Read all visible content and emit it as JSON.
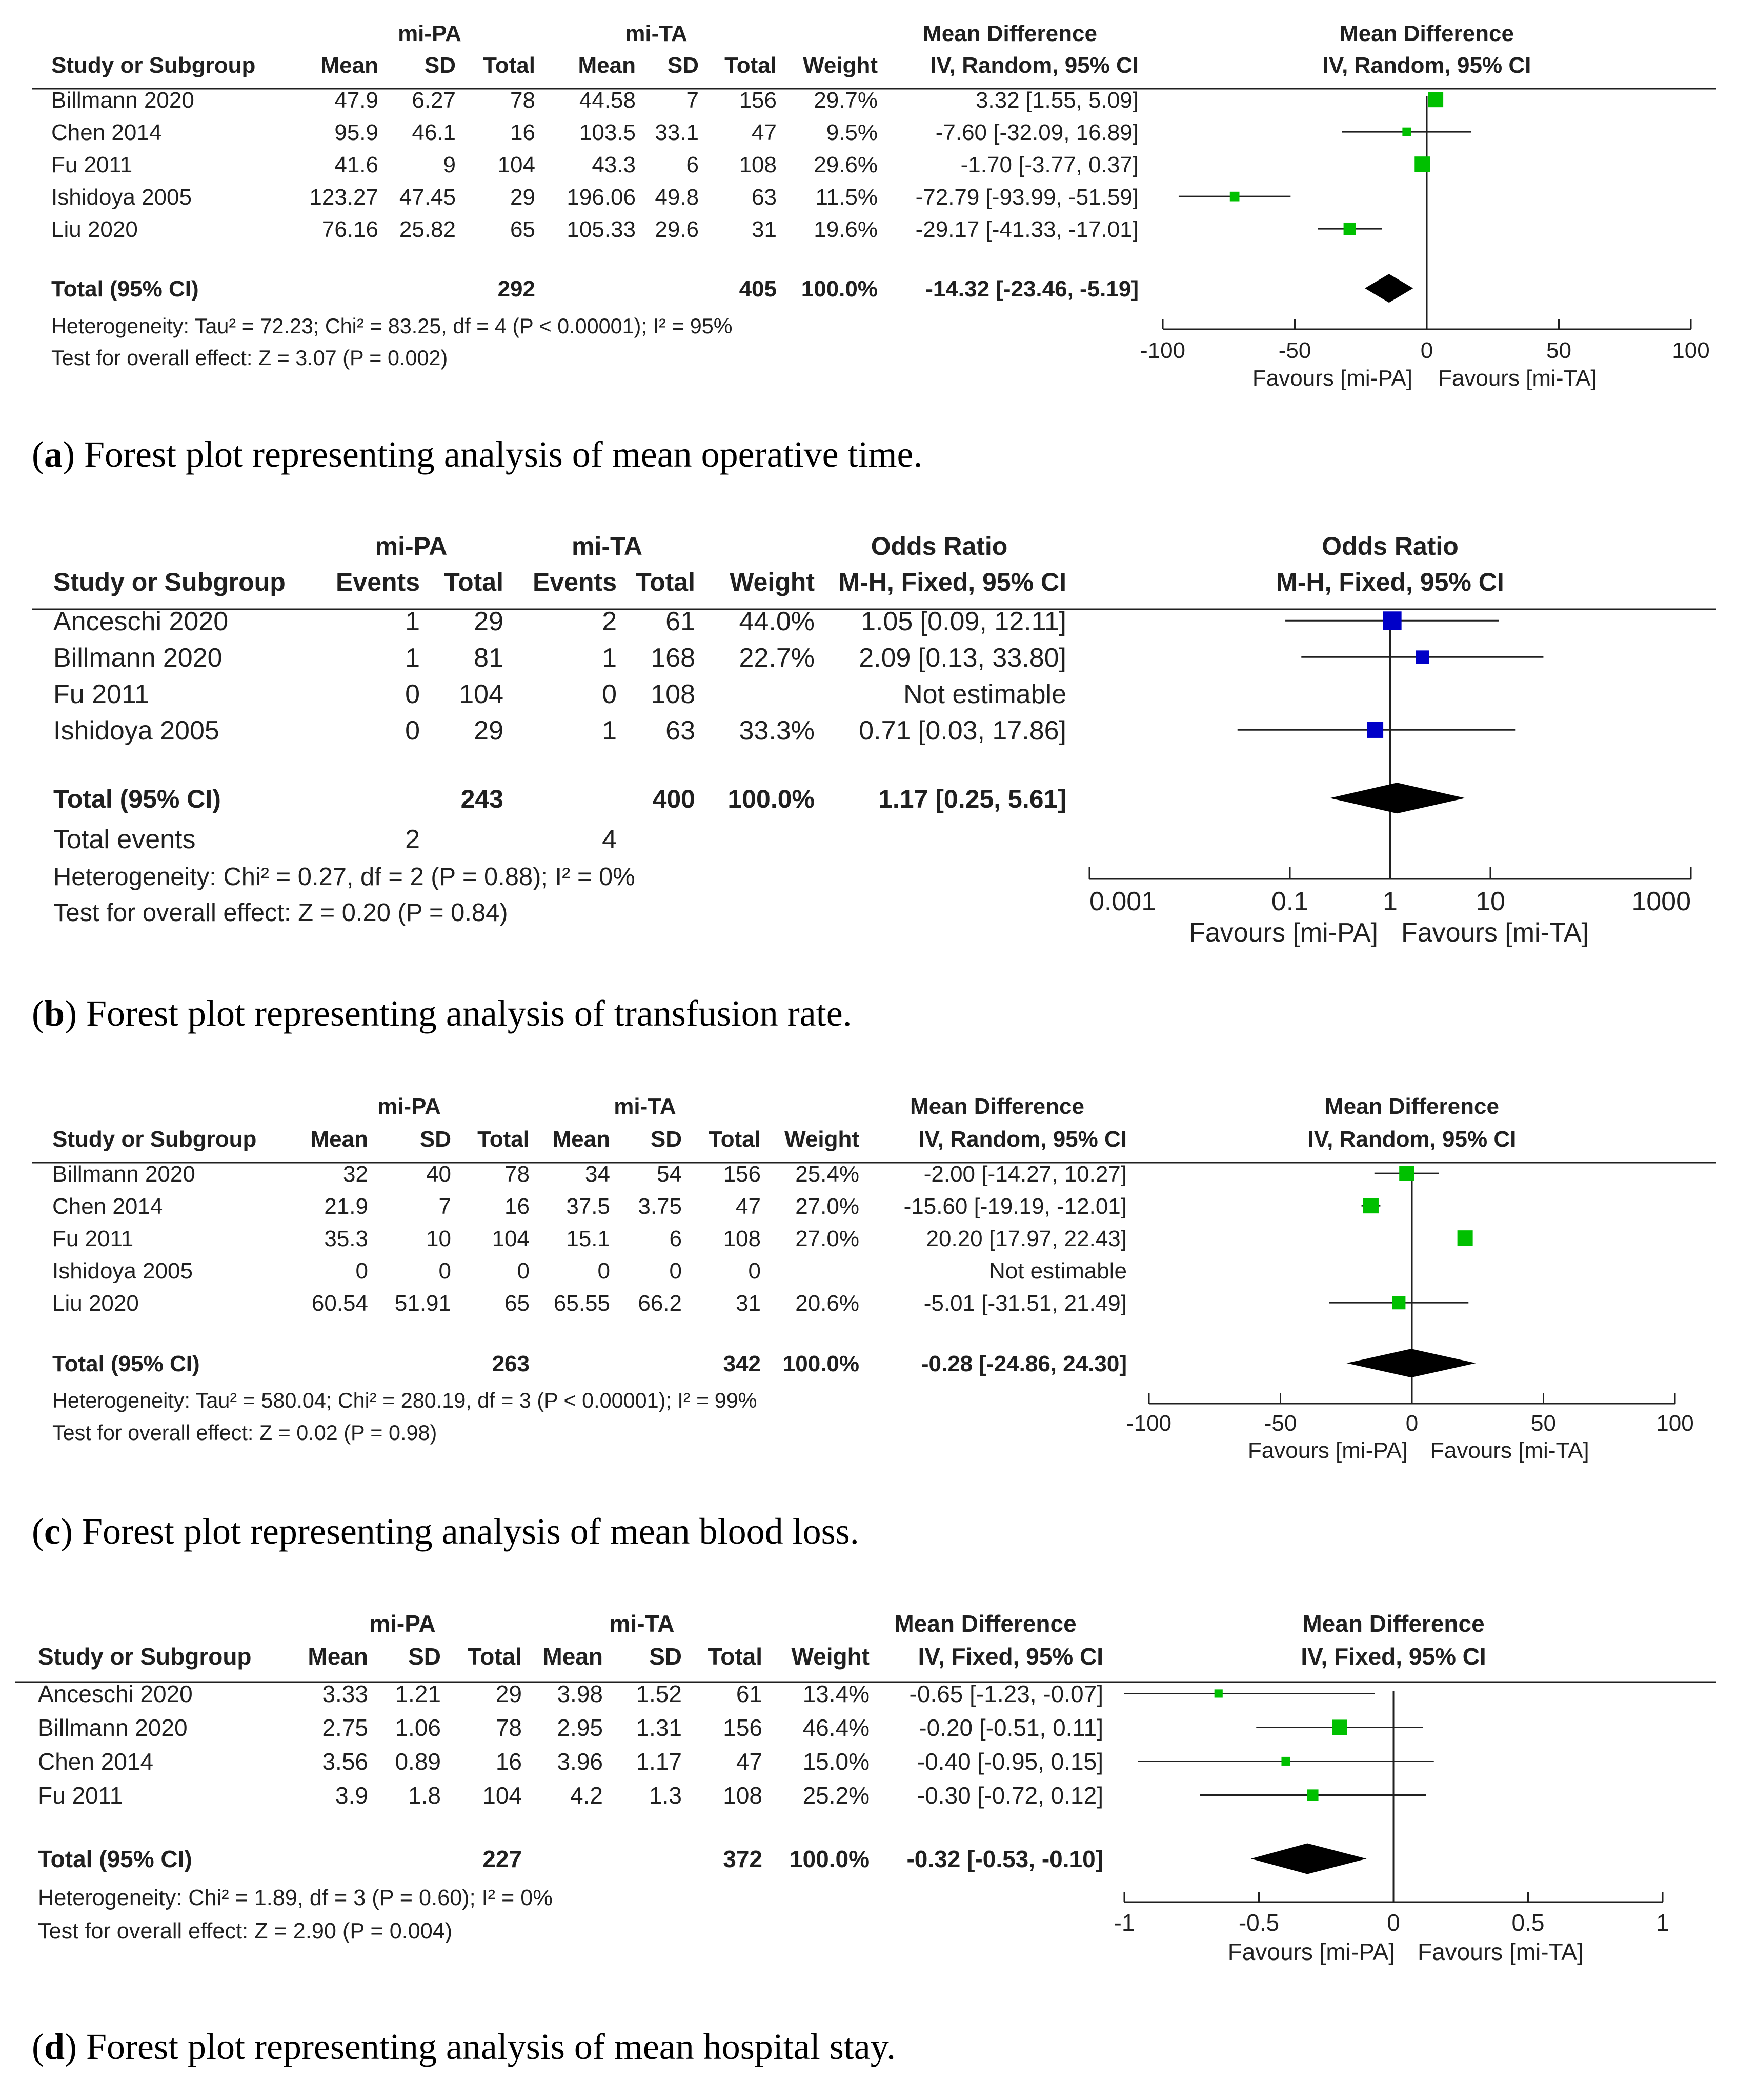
{
  "chart_data": [
    {
      "type": "forest",
      "caption_label": "a",
      "caption_text": "Forest plot representing analysis of mean operative time.",
      "group1": "mi-PA",
      "group2": "mi-TA",
      "effect_title": "Mean Difference",
      "effect_method": "IV, Random, 95% CI",
      "columns": [
        "Study or Subgroup",
        "Mean",
        "SD",
        "Total",
        "Mean",
        "SD",
        "Total",
        "Weight",
        "IV, Random, 95% CI"
      ],
      "studies": [
        {
          "name": "Billmann 2020",
          "cells": [
            "47.9",
            "6.27",
            "78",
            "44.58",
            "7",
            "156",
            "29.7%",
            "3.32 [1.55, 5.09]"
          ],
          "est": 3.32,
          "lo": 1.55,
          "hi": 5.09,
          "weight": 29.7
        },
        {
          "name": "Chen 2014",
          "cells": [
            "95.9",
            "46.1",
            "16",
            "103.5",
            "33.1",
            "47",
            "9.5%",
            "-7.60 [-32.09, 16.89]"
          ],
          "est": -7.6,
          "lo": -32.09,
          "hi": 16.89,
          "weight": 9.5
        },
        {
          "name": "Fu 2011",
          "cells": [
            "41.6",
            "9",
            "104",
            "43.3",
            "6",
            "108",
            "29.6%",
            "-1.70 [-3.77, 0.37]"
          ],
          "est": -1.7,
          "lo": -3.77,
          "hi": 0.37,
          "weight": 29.6
        },
        {
          "name": "Ishidoya 2005",
          "cells": [
            "123.27",
            "47.45",
            "29",
            "196.06",
            "49.8",
            "63",
            "11.5%",
            "-72.79 [-93.99, -51.59]"
          ],
          "est": -72.79,
          "lo": -93.99,
          "hi": -51.59,
          "weight": 11.5
        },
        {
          "name": "Liu 2020",
          "cells": [
            "76.16",
            "25.82",
            "65",
            "105.33",
            "29.6",
            "31",
            "19.6%",
            "-29.17 [-41.33, -17.01]"
          ],
          "est": -29.17,
          "lo": -41.33,
          "hi": -17.01,
          "weight": 19.6
        }
      ],
      "total": {
        "name": "Total (95% CI)",
        "cells": [
          "",
          "",
          "292",
          "",
          "",
          "405",
          "100.0%",
          "-14.32 [-23.46, -5.19]"
        ],
        "est": -14.32,
        "lo": -23.46,
        "hi": -5.19
      },
      "events": null,
      "heterogeneity": "Heterogeneity: Tau² = 72.23; Chi² = 83.25, df = 4 (P < 0.00001); I² = 95%",
      "overall_test": "Test for overall effect: Z = 3.07 (P = 0.002)",
      "scale": "linear",
      "x_range": [
        -100,
        100
      ],
      "ticks": [
        -100,
        -50,
        0,
        50,
        100
      ],
      "tick_labels": [
        "-100",
        "-50",
        "0",
        "50",
        "100"
      ],
      "favours_left": "Favours [mi-PA]",
      "favours_right": "Favours [mi-TA]",
      "marker_color": "#00c000"
    },
    {
      "type": "forest",
      "caption_label": "b",
      "caption_text": "Forest plot representing analysis of transfusion rate.",
      "group1": "mi-PA",
      "group2": "mi-TA",
      "effect_title": "Odds Ratio",
      "effect_method": "M-H, Fixed, 95% CI",
      "columns": [
        "Study or Subgroup",
        "Events",
        "Total",
        "Events",
        "Total",
        "Weight",
        "M-H, Fixed, 95% CI"
      ],
      "studies": [
        {
          "name": "Anceschi 2020",
          "cells": [
            "1",
            "29",
            "2",
            "61",
            "44.0%",
            "1.05 [0.09, 12.11]"
          ],
          "est": 1.05,
          "lo": 0.09,
          "hi": 12.11,
          "weight": 44.0
        },
        {
          "name": "Billmann 2020",
          "cells": [
            "1",
            "81",
            "1",
            "168",
            "22.7%",
            "2.09 [0.13, 33.80]"
          ],
          "est": 2.09,
          "lo": 0.13,
          "hi": 33.8,
          "weight": 22.7
        },
        {
          "name": "Fu 2011",
          "cells": [
            "0",
            "104",
            "0",
            "108",
            "",
            "Not estimable"
          ],
          "est": null,
          "lo": null,
          "hi": null,
          "weight": null
        },
        {
          "name": "Ishidoya 2005",
          "cells": [
            "0",
            "29",
            "1",
            "63",
            "33.3%",
            "0.71 [0.03, 17.86]"
          ],
          "est": 0.71,
          "lo": 0.03,
          "hi": 17.86,
          "weight": 33.3
        }
      ],
      "total": {
        "name": "Total (95% CI)",
        "cells": [
          "",
          "243",
          "",
          "400",
          "100.0%",
          "1.17 [0.25, 5.61]"
        ],
        "est": 1.17,
        "lo": 0.25,
        "hi": 5.61
      },
      "events": {
        "name": "Total events",
        "cells": [
          "2",
          "",
          "4",
          "",
          "",
          ""
        ]
      },
      "heterogeneity": "Heterogeneity: Chi² = 0.27, df = 2 (P = 0.88); I² = 0%",
      "overall_test": "Test for overall effect: Z = 0.20 (P = 0.84)",
      "scale": "log",
      "x_range": [
        0.001,
        1000
      ],
      "ticks": [
        0.001,
        0.1,
        1,
        10,
        1000
      ],
      "tick_labels": [
        "0.001",
        "0.1",
        "1",
        "10",
        "1000"
      ],
      "favours_left": "Favours [mi-PA]",
      "favours_right": "Favours [mi-TA]",
      "marker_color": "#0000c8"
    },
    {
      "type": "forest",
      "caption_label": "c",
      "caption_text": "Forest plot representing analysis of mean blood loss.",
      "group1": "mi-PA",
      "group2": "mi-TA",
      "effect_title": "Mean Difference",
      "effect_method": "IV, Random, 95% CI",
      "columns": [
        "Study or Subgroup",
        "Mean",
        "SD",
        "Total",
        "Mean",
        "SD",
        "Total",
        "Weight",
        "IV, Random, 95% CI"
      ],
      "studies": [
        {
          "name": "Billmann 2020",
          "cells": [
            "32",
            "40",
            "78",
            "34",
            "54",
            "156",
            "25.4%",
            "-2.00 [-14.27, 10.27]"
          ],
          "est": -2.0,
          "lo": -14.27,
          "hi": 10.27,
          "weight": 25.4
        },
        {
          "name": "Chen 2014",
          "cells": [
            "21.9",
            "7",
            "16",
            "37.5",
            "3.75",
            "47",
            "27.0%",
            "-15.60 [-19.19, -12.01]"
          ],
          "est": -15.6,
          "lo": -19.19,
          "hi": -12.01,
          "weight": 27.0
        },
        {
          "name": "Fu 2011",
          "cells": [
            "35.3",
            "10",
            "104",
            "15.1",
            "6",
            "108",
            "27.0%",
            "20.20 [17.97, 22.43]"
          ],
          "est": 20.2,
          "lo": 17.97,
          "hi": 22.43,
          "weight": 27.0
        },
        {
          "name": "Ishidoya 2005",
          "cells": [
            "0",
            "0",
            "0",
            "0",
            "0",
            "0",
            "",
            "Not estimable"
          ],
          "est": null,
          "lo": null,
          "hi": null,
          "weight": null
        },
        {
          "name": "Liu 2020",
          "cells": [
            "60.54",
            "51.91",
            "65",
            "65.55",
            "66.2",
            "31",
            "20.6%",
            "-5.01 [-31.51, 21.49]"
          ],
          "est": -5.01,
          "lo": -31.51,
          "hi": 21.49,
          "weight": 20.6
        }
      ],
      "total": {
        "name": "Total (95% CI)",
        "cells": [
          "",
          "",
          "263",
          "",
          "",
          "342",
          "100.0%",
          "-0.28 [-24.86, 24.30]"
        ],
        "est": -0.28,
        "lo": -24.86,
        "hi": 24.3
      },
      "events": null,
      "heterogeneity": "Heterogeneity: Tau² = 580.04; Chi² = 280.19, df = 3 (P < 0.00001); I² = 99%",
      "overall_test": "Test for overall effect: Z = 0.02 (P = 0.98)",
      "scale": "linear",
      "x_range": [
        -100,
        100
      ],
      "ticks": [
        -100,
        -50,
        0,
        50,
        100
      ],
      "tick_labels": [
        "-100",
        "-50",
        "0",
        "50",
        "100"
      ],
      "favours_left": "Favours [mi-PA]",
      "favours_right": "Favours [mi-TA]",
      "marker_color": "#00c000"
    },
    {
      "type": "forest",
      "caption_label": "d",
      "caption_text": "Forest plot representing analysis of mean hospital stay.",
      "group1": "mi-PA",
      "group2": "mi-TA",
      "effect_title": "Mean Difference",
      "effect_method": "IV, Fixed, 95% CI",
      "columns": [
        "Study or Subgroup",
        "Mean",
        "SD",
        "Total",
        "Mean",
        "SD",
        "Total",
        "Weight",
        "IV, Fixed, 95% CI"
      ],
      "studies": [
        {
          "name": "Anceschi 2020",
          "cells": [
            "3.33",
            "1.21",
            "29",
            "3.98",
            "1.52",
            "61",
            "13.4%",
            "-0.65 [-1.23, -0.07]"
          ],
          "est": -0.65,
          "lo": -1.23,
          "hi": -0.07,
          "weight": 13.4
        },
        {
          "name": "Billmann 2020",
          "cells": [
            "2.75",
            "1.06",
            "78",
            "2.95",
            "1.31",
            "156",
            "46.4%",
            "-0.20 [-0.51, 0.11]"
          ],
          "est": -0.2,
          "lo": -0.51,
          "hi": 0.11,
          "weight": 46.4
        },
        {
          "name": "Chen 2014",
          "cells": [
            "3.56",
            "0.89",
            "16",
            "3.96",
            "1.17",
            "47",
            "15.0%",
            "-0.40 [-0.95, 0.15]"
          ],
          "est": -0.4,
          "lo": -0.95,
          "hi": 0.15,
          "weight": 15.0
        },
        {
          "name": "Fu 2011",
          "cells": [
            "3.9",
            "1.8",
            "104",
            "4.2",
            "1.3",
            "108",
            "25.2%",
            "-0.30 [-0.72, 0.12]"
          ],
          "est": -0.3,
          "lo": -0.72,
          "hi": 0.12,
          "weight": 25.2
        }
      ],
      "total": {
        "name": "Total (95% CI)",
        "cells": [
          "",
          "",
          "227",
          "",
          "",
          "372",
          "100.0%",
          "-0.32 [-0.53, -0.10]"
        ],
        "est": -0.32,
        "lo": -0.53,
        "hi": -0.1
      },
      "events": null,
      "heterogeneity": "Heterogeneity: Chi² = 1.89, df = 3 (P = 0.60); I² = 0%",
      "overall_test": "Test for overall effect: Z = 2.90 (P = 0.004)",
      "scale": "linear",
      "x_range": [
        -1,
        1
      ],
      "ticks": [
        -1,
        -0.5,
        0,
        0.5,
        1
      ],
      "tick_labels": [
        "-1",
        "-0.5",
        "0",
        "0.5",
        "1"
      ],
      "favours_left": "Favours [mi-PA]",
      "favours_right": "Favours [mi-TA]",
      "marker_color": "#00c000"
    }
  ]
}
